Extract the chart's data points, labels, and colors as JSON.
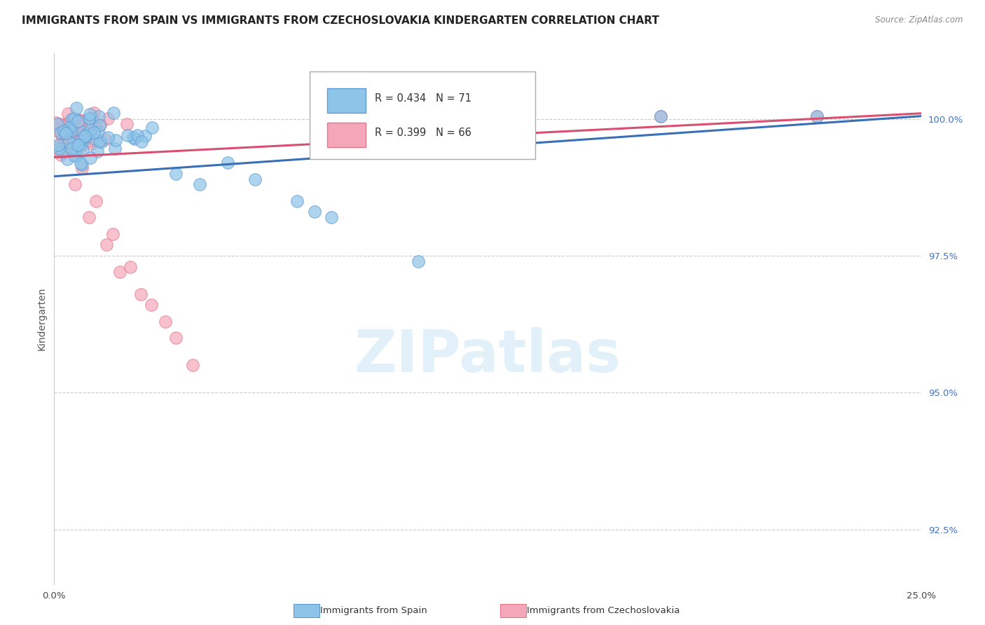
{
  "title": "IMMIGRANTS FROM SPAIN VS IMMIGRANTS FROM CZECHOSLOVAKIA KINDERGARTEN CORRELATION CHART",
  "source": "Source: ZipAtlas.com",
  "ylabel": "Kindergarten",
  "legend_blue_r": "R = 0.434",
  "legend_blue_n": "N = 71",
  "legend_pink_r": "R = 0.399",
  "legend_pink_n": "N = 66",
  "legend_blue_label": "Immigrants from Spain",
  "legend_pink_label": "Immigrants from Czechoslovakia",
  "blue_color": "#8ec4e8",
  "pink_color": "#f4a7b9",
  "blue_edge_color": "#5b9bd5",
  "pink_edge_color": "#e8758a",
  "blue_line_color": "#3a6fb5",
  "pink_line_color": "#d94f72",
  "background_color": "#ffffff",
  "xlim": [
    0,
    25
  ],
  "ylim": [
    91.5,
    101.2
  ],
  "yticks": [
    92.5,
    95.0,
    97.5,
    100.0
  ],
  "title_fontsize": 11,
  "tick_fontsize": 9.5,
  "ytick_color": "#4472c4",
  "marker_size": 160
}
